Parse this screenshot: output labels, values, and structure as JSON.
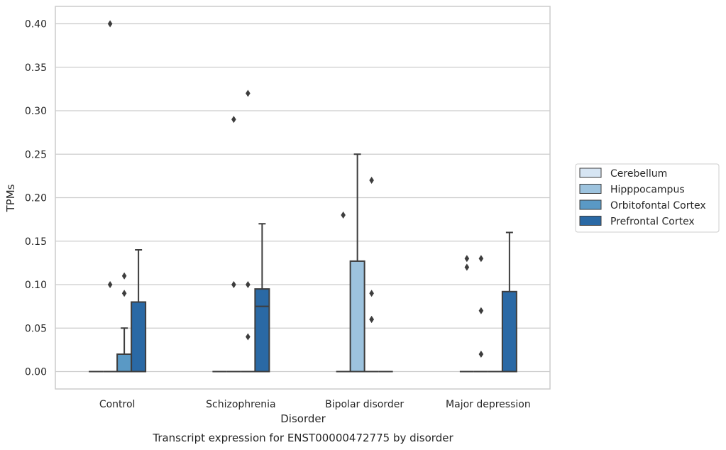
{
  "chart_data": {
    "type": "box",
    "xlabel": "Disorder",
    "ylabel": "TPMs",
    "caption": "Transcript expression for ENST00000472775 by disorder",
    "categories": [
      "Control",
      "Schizophrenia",
      "Bipolar disorder",
      "Major depression"
    ],
    "ylim": [
      -0.02,
      0.42
    ],
    "yticks": [
      "0.00",
      "0.05",
      "0.10",
      "0.15",
      "0.20",
      "0.25",
      "0.30",
      "0.35",
      "0.40"
    ],
    "grid": true,
    "legend_position": "right",
    "series": [
      {
        "name": "Cerebellum",
        "color": "#d6e5f3",
        "boxes": [
          {
            "category": "Control",
            "min": 0,
            "q1": 0,
            "median": 0,
            "q3": 0,
            "max": 0,
            "outliers": []
          },
          {
            "category": "Schizophrenia",
            "min": 0,
            "q1": 0,
            "median": 0,
            "q3": 0,
            "max": 0,
            "outliers": []
          },
          {
            "category": "Bipolar disorder",
            "min": 0,
            "q1": 0,
            "median": 0,
            "q3": 0,
            "max": 0,
            "outliers": [
              0.18
            ]
          },
          {
            "category": "Major depression",
            "min": 0,
            "q1": 0,
            "median": 0,
            "q3": 0,
            "max": 0,
            "outliers": [
              0.12,
              0.13
            ]
          }
        ]
      },
      {
        "name": "Hipppocampus",
        "color": "#9dc3de",
        "boxes": [
          {
            "category": "Control",
            "min": 0,
            "q1": 0,
            "median": 0,
            "q3": 0,
            "max": 0,
            "outliers": [
              0.4,
              0.1
            ]
          },
          {
            "category": "Schizophrenia",
            "min": 0,
            "q1": 0,
            "median": 0,
            "q3": 0,
            "max": 0,
            "outliers": [
              0.29,
              0.1
            ]
          },
          {
            "category": "Bipolar disorder",
            "min": 0,
            "q1": 0,
            "median": 0,
            "q3": 0.127,
            "max": 0.25,
            "outliers": []
          },
          {
            "category": "Major depression",
            "min": 0,
            "q1": 0,
            "median": 0,
            "q3": 0,
            "max": 0,
            "outliers": [
              0.13,
              0.07,
              0.02
            ]
          }
        ]
      },
      {
        "name": "Orbitofontal Cortex",
        "color": "#5a99c5",
        "boxes": [
          {
            "category": "Control",
            "min": 0,
            "q1": 0,
            "median": 0,
            "q3": 0.02,
            "max": 0.05,
            "outliers": [
              0.11,
              0.09
            ]
          },
          {
            "category": "Schizophrenia",
            "min": 0,
            "q1": 0,
            "median": 0,
            "q3": 0,
            "max": 0,
            "outliers": [
              0.32,
              0.1,
              0.04
            ]
          },
          {
            "category": "Bipolar disorder",
            "min": 0,
            "q1": 0,
            "median": 0,
            "q3": 0,
            "max": 0,
            "outliers": [
              0.22,
              0.06,
              0.09,
              0.06
            ]
          },
          {
            "category": "Major depression",
            "min": 0,
            "q1": 0,
            "median": 0,
            "q3": 0,
            "max": 0,
            "outliers": []
          }
        ]
      },
      {
        "name": "Prefrontal Cortex",
        "color": "#2a69a5",
        "boxes": [
          {
            "category": "Control",
            "min": 0,
            "q1": 0,
            "median": 0,
            "q3": 0.08,
            "max": 0.14,
            "outliers": []
          },
          {
            "category": "Schizophrenia",
            "min": 0,
            "q1": 0,
            "median": 0.075,
            "q3": 0.095,
            "max": 0.17,
            "outliers": []
          },
          {
            "category": "Bipolar disorder",
            "min": 0,
            "q1": 0,
            "median": 0,
            "q3": 0,
            "max": 0,
            "outliers": []
          },
          {
            "category": "Major depression",
            "min": 0,
            "q1": 0,
            "median": 0,
            "q3": 0.092,
            "max": 0.16,
            "outliers": []
          }
        ]
      }
    ]
  }
}
